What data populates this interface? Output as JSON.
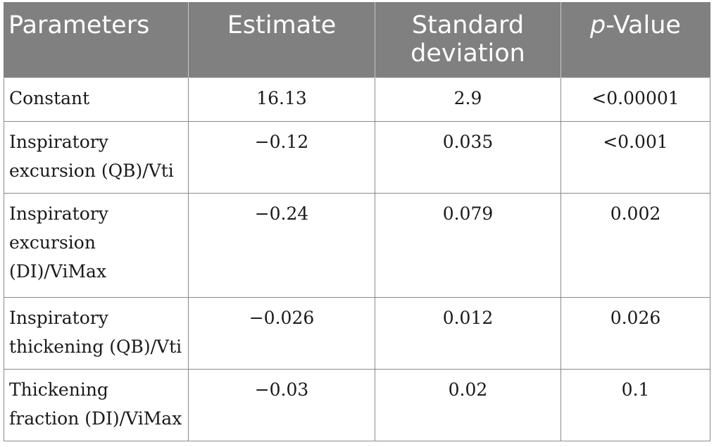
{
  "table": {
    "headers": {
      "parameters": "Parameters",
      "estimate": "Estimate",
      "std_dev": "Standard deviation",
      "p_italic": "p",
      "p_rest": "-Value"
    },
    "rows": [
      {
        "parameter": "Constant",
        "estimate": "16.13",
        "std_dev": "2.9",
        "p_value": "<0.00001"
      },
      {
        "parameter": "Inspiratory excursion (QB)/Vti",
        "estimate": "−0.12",
        "std_dev": "0.035",
        "p_value": "<0.001"
      },
      {
        "parameter": "Inspiratory excursion (DI)/ViMax",
        "estimate": "−0.24",
        "std_dev": "0.079",
        "p_value": "0.002"
      },
      {
        "parameter": "Inspiratory thickening (QB)/Vti",
        "estimate": "−0.026",
        "std_dev": "0.012",
        "p_value": "0.026"
      },
      {
        "parameter": "Thickening fraction (DI)/ViMax",
        "estimate": "−0.03",
        "std_dev": "0.02",
        "p_value": "0.1"
      }
    ]
  }
}
